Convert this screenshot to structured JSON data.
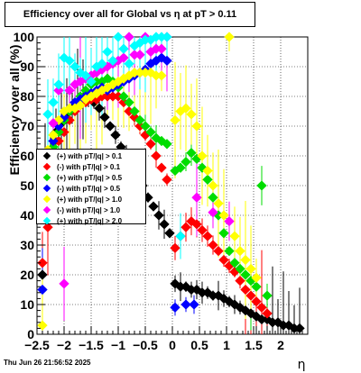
{
  "title": "Efficiency over all for Global vs    η at pT > 0.11",
  "timestamp": "Thu Jun 26 21:56:52 2025",
  "chart_data": {
    "type": "scatter",
    "title": "Efficiency over all for Global vs    η at pT > 0.11",
    "xlabel": "η",
    "ylabel": "Efficiency over all (%)",
    "xlim": [
      -2.5,
      2.5
    ],
    "ylim": [
      0,
      100
    ],
    "xticks": [
      "-2.5",
      "-2",
      "-1.5",
      "-1",
      "-0.5",
      "0",
      "0.5",
      "1",
      "1.5",
      "2"
    ],
    "yticks": [
      "0",
      "10",
      "20",
      "30",
      "40",
      "50",
      "60",
      "70",
      "80",
      "90",
      "100"
    ],
    "grid": true,
    "legend_position": "left-middle",
    "series": [
      {
        "name": "(+) with pT/|q| > 0.1",
        "color": "#000000",
        "points": [
          [
            -2.4,
            20
          ],
          [
            -2.35,
            58
          ],
          [
            -2.25,
            62
          ],
          [
            -2.15,
            68
          ],
          [
            -2.05,
            71
          ],
          [
            -1.95,
            74
          ],
          [
            -1.85,
            76
          ],
          [
            -1.75,
            78
          ],
          [
            -1.65,
            79
          ],
          [
            -1.55,
            79
          ],
          [
            -1.45,
            78
          ],
          [
            -1.35,
            76
          ],
          [
            -1.25,
            73
          ],
          [
            -1.15,
            70
          ],
          [
            -1.05,
            67
          ],
          [
            -0.95,
            63
          ],
          [
            -0.85,
            60
          ],
          [
            -0.75,
            57
          ],
          [
            -0.65,
            53
          ],
          [
            -0.55,
            50
          ],
          [
            -0.45,
            46
          ],
          [
            -0.35,
            43
          ],
          [
            -0.25,
            40
          ],
          [
            -0.15,
            37
          ],
          [
            -0.05,
            34
          ],
          [
            0.05,
            17
          ],
          [
            0.15,
            16
          ],
          [
            0.25,
            16
          ],
          [
            0.35,
            15
          ],
          [
            0.45,
            15
          ],
          [
            0.55,
            14
          ],
          [
            0.65,
            14
          ],
          [
            0.75,
            13
          ],
          [
            0.85,
            13
          ],
          [
            0.95,
            12
          ],
          [
            1.05,
            11
          ],
          [
            1.15,
            10
          ],
          [
            1.25,
            9
          ],
          [
            1.35,
            8
          ],
          [
            1.45,
            7
          ],
          [
            1.55,
            6
          ],
          [
            1.65,
            5
          ],
          [
            1.75,
            5
          ],
          [
            1.85,
            4
          ],
          [
            1.95,
            4
          ],
          [
            2.05,
            3
          ],
          [
            2.15,
            3
          ],
          [
            2.25,
            2
          ],
          [
            2.35,
            2
          ]
        ]
      },
      {
        "name": "(-) with pT/|q| > 0.1",
        "color": "#ff0000",
        "points": [
          [
            -2.4,
            24
          ],
          [
            -2.3,
            36
          ],
          [
            -2.2,
            60
          ],
          [
            -2.1,
            65
          ],
          [
            -2.0,
            68
          ],
          [
            -1.9,
            72
          ],
          [
            -1.8,
            75
          ],
          [
            -1.7,
            77
          ],
          [
            -1.6,
            78
          ],
          [
            -1.5,
            79
          ],
          [
            -1.4,
            79
          ],
          [
            -1.3,
            80
          ],
          [
            -1.2,
            80
          ],
          [
            -1.1,
            80
          ],
          [
            -1.0,
            80
          ],
          [
            -0.9,
            78
          ],
          [
            -0.8,
            75
          ],
          [
            -0.7,
            73
          ],
          [
            -0.6,
            70
          ],
          [
            -0.5,
            67
          ],
          [
            -0.4,
            64
          ],
          [
            -0.3,
            60
          ],
          [
            -0.2,
            56
          ],
          [
            -0.1,
            52
          ],
          [
            0.05,
            29
          ],
          [
            0.15,
            33
          ],
          [
            0.25,
            36
          ],
          [
            0.35,
            38
          ],
          [
            0.45,
            37
          ],
          [
            0.55,
            35
          ],
          [
            0.65,
            33
          ],
          [
            0.75,
            30
          ],
          [
            0.85,
            28
          ],
          [
            0.95,
            25
          ],
          [
            1.05,
            23
          ],
          [
            1.15,
            21
          ],
          [
            1.25,
            18
          ],
          [
            1.35,
            15
          ],
          [
            1.45,
            13
          ],
          [
            1.55,
            11
          ],
          [
            1.65,
            9
          ],
          [
            1.75,
            7
          ]
        ]
      },
      {
        "name": "(+) with pT/|q| > 0.5",
        "color": "#00dd00",
        "points": [
          [
            -2.3,
            45
          ],
          [
            -2.2,
            63
          ],
          [
            -2.1,
            68
          ],
          [
            -2.0,
            72
          ],
          [
            -1.9,
            75
          ],
          [
            -1.8,
            78
          ],
          [
            -1.7,
            80
          ],
          [
            -1.6,
            82
          ],
          [
            -1.5,
            84
          ],
          [
            -1.4,
            85
          ],
          [
            -1.3,
            85
          ],
          [
            -1.2,
            86
          ],
          [
            -1.1,
            85
          ],
          [
            -1.0,
            83
          ],
          [
            -0.9,
            80
          ],
          [
            -0.8,
            78
          ],
          [
            -0.7,
            75
          ],
          [
            -0.6,
            72
          ],
          [
            -0.5,
            70
          ],
          [
            -0.4,
            68
          ],
          [
            -0.3,
            66
          ],
          [
            -0.2,
            65
          ],
          [
            -0.1,
            64
          ],
          [
            0.05,
            55
          ],
          [
            0.15,
            56
          ],
          [
            0.25,
            58
          ],
          [
            0.35,
            61
          ],
          [
            0.45,
            59
          ],
          [
            0.55,
            56
          ],
          [
            0.65,
            52
          ],
          [
            0.75,
            46
          ],
          [
            0.85,
            40
          ],
          [
            0.95,
            34
          ],
          [
            1.05,
            28
          ],
          [
            1.15,
            24
          ],
          [
            1.25,
            22
          ],
          [
            1.35,
            20
          ],
          [
            1.45,
            18
          ],
          [
            1.55,
            16
          ],
          [
            1.65,
            50
          ],
          [
            1.75,
            13
          ]
        ]
      },
      {
        "name": "(-) with pT/|q| > 0.5",
        "color": "#0000ff",
        "points": [
          [
            -2.4,
            15
          ],
          [
            -2.3,
            60
          ],
          [
            -2.2,
            65
          ],
          [
            -2.1,
            70
          ],
          [
            -2.0,
            73
          ],
          [
            -1.9,
            76
          ],
          [
            -1.8,
            78
          ],
          [
            -1.7,
            79
          ],
          [
            -1.6,
            80
          ],
          [
            -1.5,
            81
          ],
          [
            -1.4,
            82
          ],
          [
            -1.3,
            83
          ],
          [
            -1.2,
            82
          ],
          [
            -1.1,
            83
          ],
          [
            -1.0,
            84
          ],
          [
            -0.9,
            85
          ],
          [
            -0.8,
            86
          ],
          [
            -0.7,
            87
          ],
          [
            -0.6,
            88
          ],
          [
            -0.5,
            89
          ],
          [
            -0.4,
            91
          ],
          [
            -0.3,
            92
          ],
          [
            -0.2,
            93
          ],
          [
            -0.1,
            92
          ],
          [
            0.05,
            9
          ],
          [
            0.25,
            10
          ],
          [
            0.4,
            10
          ]
        ]
      },
      {
        "name": "(+) with pT/|q| > 1.0",
        "color": "#ffff00",
        "points": [
          [
            -2.4,
            3
          ],
          [
            -2.3,
            62
          ],
          [
            -2.2,
            67
          ],
          [
            -2.1,
            72
          ],
          [
            -2.0,
            75
          ],
          [
            -1.9,
            76
          ],
          [
            -1.8,
            76
          ],
          [
            -1.7,
            77
          ],
          [
            -1.6,
            79
          ],
          [
            -1.5,
            80
          ],
          [
            -1.4,
            81
          ],
          [
            -1.3,
            82
          ],
          [
            -1.2,
            83
          ],
          [
            -1.1,
            84
          ],
          [
            -1.0,
            85
          ],
          [
            -0.9,
            86
          ],
          [
            -0.8,
            87
          ],
          [
            -0.7,
            88
          ],
          [
            -0.6,
            88
          ],
          [
            -0.5,
            88
          ],
          [
            -0.4,
            88
          ],
          [
            -0.3,
            87
          ],
          [
            -0.2,
            87
          ],
          [
            0.05,
            72
          ],
          [
            0.15,
            75
          ],
          [
            0.25,
            76
          ],
          [
            0.35,
            74
          ],
          [
            0.45,
            70
          ],
          [
            0.55,
            60
          ],
          [
            0.65,
            55
          ],
          [
            0.75,
            50
          ],
          [
            0.85,
            44
          ],
          [
            0.95,
            40
          ],
          [
            1.05,
            100
          ],
          [
            1.15,
            33
          ],
          [
            1.25,
            28
          ],
          [
            1.35,
            25
          ],
          [
            1.45,
            22
          ],
          [
            1.55,
            19
          ]
        ]
      },
      {
        "name": "(-) with pT/|q| > 1.0",
        "color": "#ff00ff",
        "points": [
          [
            -2.3,
            54
          ],
          [
            -2.2,
            71
          ],
          [
            -2.1,
            82
          ],
          [
            -2.0,
            17
          ],
          [
            -1.9,
            82
          ],
          [
            -1.8,
            84
          ],
          [
            -1.7,
            85
          ],
          [
            -1.6,
            86
          ],
          [
            -1.5,
            87
          ],
          [
            -1.4,
            88
          ],
          [
            -1.3,
            89
          ],
          [
            -1.2,
            90
          ],
          [
            -1.1,
            91
          ],
          [
            -1.0,
            92
          ],
          [
            -0.9,
            93
          ],
          [
            -0.8,
            100
          ],
          [
            -0.7,
            94
          ],
          [
            -0.6,
            94
          ],
          [
            -0.5,
            100
          ],
          [
            -0.4,
            95
          ],
          [
            -0.3,
            96
          ],
          [
            -0.2,
            96
          ],
          [
            -0.1,
            100
          ],
          [
            0.45,
            46
          ],
          [
            0.75,
            41
          ],
          [
            1.05,
            38
          ]
        ]
      },
      {
        "name": "(+) with pT/|q| > 2.0",
        "color": "#00ffff",
        "points": [
          [
            -2.3,
            74
          ],
          [
            -2.2,
            78
          ],
          [
            -2.1,
            84
          ],
          [
            -2.0,
            93
          ],
          [
            -1.9,
            92
          ],
          [
            -1.8,
            90
          ],
          [
            -1.7,
            88
          ],
          [
            -1.6,
            87
          ],
          [
            -1.5,
            85
          ],
          [
            -1.4,
            90
          ],
          [
            -1.3,
            91
          ],
          [
            -1.2,
            95
          ],
          [
            -1.1,
            92
          ],
          [
            -1.0,
            100
          ],
          [
            -0.9,
            96
          ],
          [
            -0.8,
            91
          ],
          [
            -0.7,
            97
          ],
          [
            -0.6,
            98
          ],
          [
            -0.5,
            99
          ],
          [
            -0.4,
            99
          ],
          [
            -0.3,
            100
          ],
          [
            -0.2,
            100
          ],
          [
            -0.1,
            100
          ],
          [
            0.15,
            33
          ]
        ]
      }
    ]
  }
}
